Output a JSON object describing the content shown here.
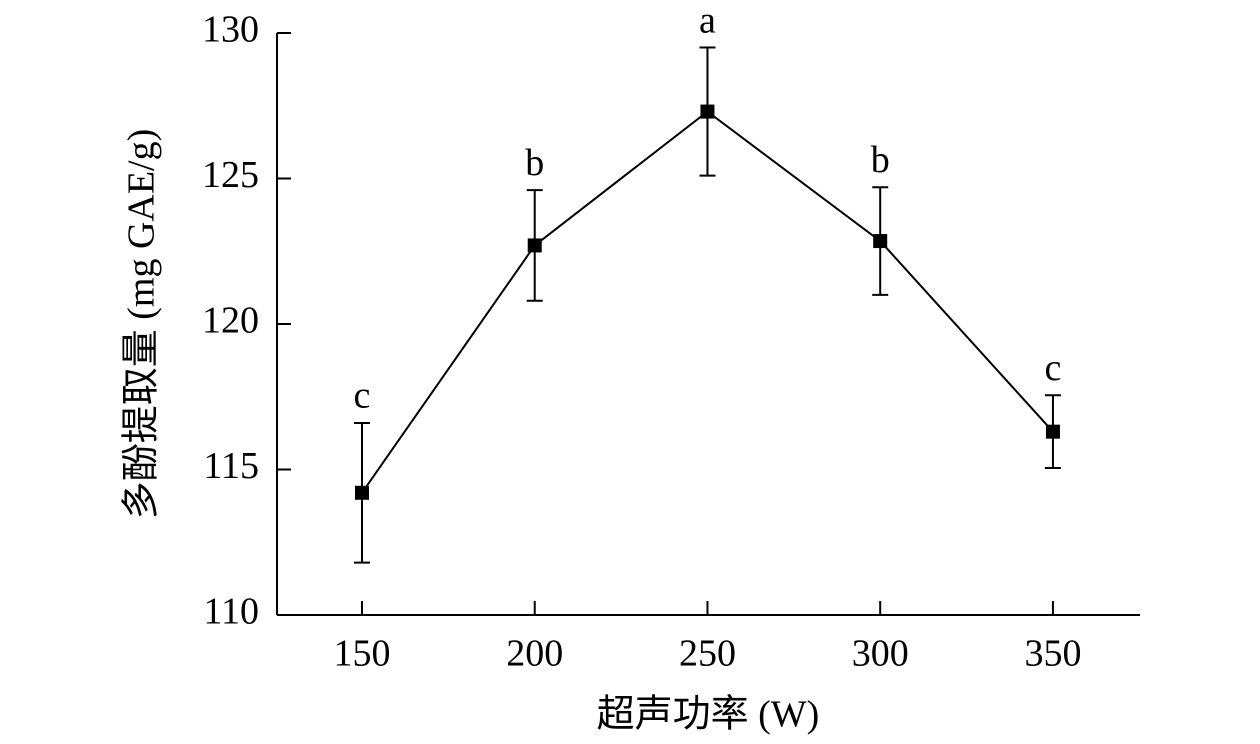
{
  "chart_data": {
    "type": "line",
    "x_label": "超声功率 (W)",
    "y_label": "多酚提取量 (mg GAE/g)",
    "x": [
      150,
      200,
      250,
      300,
      350
    ],
    "series": [
      {
        "name": null,
        "color": "#000000",
        "values": [
          114.2,
          122.7,
          127.3,
          122.85,
          116.3
        ],
        "errors": [
          2.4,
          1.9,
          2.2,
          1.85,
          1.25
        ]
      }
    ],
    "annotations": [
      "c",
      "b",
      "a",
      "b",
      "c"
    ],
    "xlim": [
      125.4,
      375.2
    ],
    "xticks": [
      150,
      200,
      250,
      300,
      350
    ],
    "ylim": [
      110,
      130
    ],
    "yticks": [
      110,
      115,
      120,
      125,
      130
    ]
  }
}
